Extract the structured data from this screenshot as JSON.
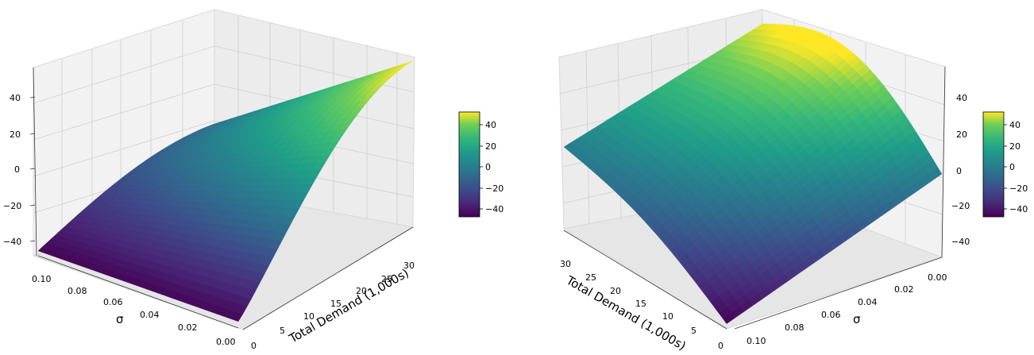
{
  "chart_data": [
    {
      "type": "surface3d",
      "view": "left",
      "z_ticks": [
        "40",
        "20",
        "0",
        "−20",
        "−40"
      ],
      "x_axis": {
        "label": "Total Demand (1,000s)",
        "range": [
          0,
          30
        ],
        "ticks": [
          "0",
          "5",
          "10",
          "15",
          "20",
          "25",
          "30"
        ]
      },
      "y_axis": {
        "label": "σ",
        "range": [
          0.0,
          0.1
        ],
        "ticks": [
          "0.00",
          "0.02",
          "0.04",
          "0.06",
          "0.08",
          "0.10"
        ]
      },
      "zlim": [
        -50,
        55
      ],
      "colorbar": {
        "colormap": "viridis",
        "range": [
          -48,
          52
        ],
        "ticks": [
          "40",
          "20",
          "0",
          "−20",
          "−40"
        ]
      },
      "surface_samples": [
        {
          "demand": 0,
          "sigma": 0.1,
          "z": -47
        },
        {
          "demand": 0,
          "sigma": 0.0,
          "z": -46
        },
        {
          "demand": 30,
          "sigma": 0.1,
          "z": -10
        },
        {
          "demand": 30,
          "sigma": 0.0,
          "z": 52
        },
        {
          "demand": 15,
          "sigma": 0.05,
          "z": 15
        }
      ]
    },
    {
      "type": "surface3d",
      "view": "right",
      "z_ticks": [
        "40",
        "20",
        "0",
        "−20",
        "−40"
      ],
      "x_axis": {
        "label": "Total Demand (1,000s)",
        "range": [
          0,
          30
        ],
        "ticks": [
          "0",
          "5",
          "10",
          "15",
          "20",
          "25",
          "30"
        ]
      },
      "y_axis": {
        "label": "σ",
        "range": [
          0.0,
          0.1
        ],
        "ticks": [
          "0.00",
          "0.02",
          "0.04",
          "0.06",
          "0.08",
          "0.10"
        ]
      },
      "zlim": [
        -50,
        55
      ],
      "colorbar": {
        "colormap": "viridis",
        "range": [
          -48,
          52
        ],
        "ticks": [
          "40",
          "20",
          "0",
          "−20",
          "−40"
        ]
      },
      "surface_samples": [
        {
          "demand": 0,
          "sigma": 0.1,
          "z": -47
        },
        {
          "demand": 30,
          "sigma": 0.1,
          "z": 0
        },
        {
          "demand": 30,
          "sigma": 0.0,
          "z": 50
        },
        {
          "demand": 0,
          "sigma": 0.0,
          "z": 0
        }
      ]
    }
  ]
}
